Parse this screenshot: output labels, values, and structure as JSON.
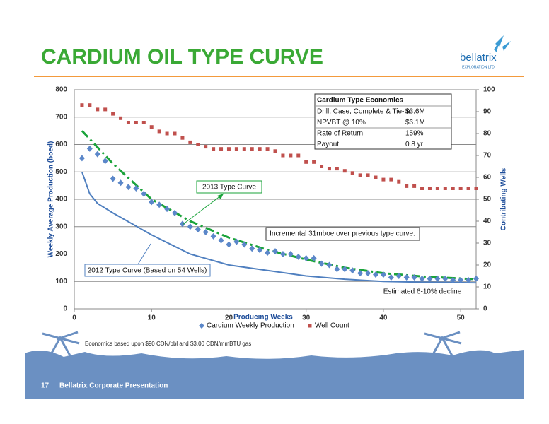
{
  "slide": {
    "title": "CARDIUM OIL TYPE CURVE",
    "logo": "bellatrix",
    "logo_sub": "EXPLORATION LTD",
    "footnote": "Economics based upon $90 CDN/bbl and $3.00 CDN/mmBTU gas",
    "page": "17",
    "footer": "Bellatrix Corporate Presentation"
  },
  "chart_data": {
    "type": "scatter",
    "x_label": "Producing Weeks",
    "y_label": "Weekly Average Production (boed)",
    "y2_label": "Contributing Wells",
    "xlim": [
      0,
      52
    ],
    "xticks": [
      0,
      10,
      20,
      30,
      40,
      50
    ],
    "ylim": [
      0,
      800
    ],
    "yticks": [
      0,
      100,
      200,
      300,
      400,
      500,
      600,
      700,
      800
    ],
    "y2lim": [
      0,
      100
    ],
    "y2ticks": [
      0,
      10,
      20,
      30,
      40,
      50,
      60,
      70,
      80,
      90,
      100
    ],
    "grid": true,
    "legend": "bottom",
    "x": [
      1,
      2,
      3,
      4,
      5,
      6,
      7,
      8,
      9,
      10,
      11,
      12,
      13,
      14,
      15,
      16,
      17,
      18,
      19,
      20,
      21,
      22,
      23,
      24,
      25,
      26,
      27,
      28,
      29,
      30,
      31,
      32,
      33,
      34,
      35,
      36,
      37,
      38,
      39,
      40,
      41,
      42,
      43,
      44,
      45,
      46,
      47,
      48,
      49,
      50,
      51,
      52
    ],
    "series": [
      {
        "name": "Cardium Weekly Production",
        "color": "#5b87c9",
        "marker": "diamond",
        "values": [
          550,
          585,
          565,
          540,
          475,
          460,
          445,
          440,
          420,
          390,
          380,
          365,
          350,
          310,
          300,
          290,
          280,
          265,
          250,
          235,
          245,
          235,
          220,
          215,
          205,
          210,
          200,
          200,
          190,
          185,
          185,
          165,
          160,
          145,
          145,
          140,
          130,
          130,
          125,
          125,
          115,
          120,
          115,
          115,
          110,
          110,
          110,
          110,
          105,
          105,
          105,
          110
        ]
      },
      {
        "name": "Well Count",
        "color": "#c0504d",
        "marker": "square",
        "axis": "y2",
        "values": [
          93,
          93,
          91,
          91,
          89,
          87,
          85,
          85,
          85,
          83,
          81,
          80,
          80,
          78,
          76,
          75,
          74,
          73,
          73,
          73,
          73,
          73,
          73,
          73,
          73,
          72,
          70,
          70,
          70,
          67,
          67,
          65,
          64,
          64,
          63,
          62,
          61,
          61,
          60,
          59,
          59,
          58,
          56,
          56,
          55,
          55,
          55,
          55,
          55,
          55,
          55,
          55
        ]
      }
    ],
    "curves": [
      {
        "name": "2013 Type Curve",
        "color": "#1aa33a",
        "x": [
          1,
          5,
          10,
          15,
          20,
          25,
          30,
          35,
          40,
          45,
          52
        ],
        "values": [
          650,
          530,
          400,
          320,
          260,
          215,
          180,
          150,
          130,
          118,
          108
        ]
      },
      {
        "name": "2012 Type Curve (Based on 54 Wells)",
        "color": "#4f7fbf",
        "x": [
          1,
          2,
          3,
          5,
          10,
          15,
          20,
          25,
          30,
          35,
          40,
          45,
          52
        ],
        "values": [
          500,
          420,
          385,
          350,
          270,
          200,
          160,
          140,
          120,
          108,
          100,
          97,
          95
        ]
      }
    ],
    "annotations": [
      "Incremental 31mboe over previous type curve.",
      "Estimated 6-10% decline"
    ],
    "economics": {
      "title": "Cardium Type Economics",
      "rows": [
        [
          "Drill, Case, Complete & Tie-In",
          "$3.6M"
        ],
        [
          "NPVBT @ 10%",
          "$6.1M"
        ],
        [
          "Rate of Return",
          "159%"
        ],
        [
          "Payout",
          "0.8 yr"
        ]
      ]
    }
  }
}
